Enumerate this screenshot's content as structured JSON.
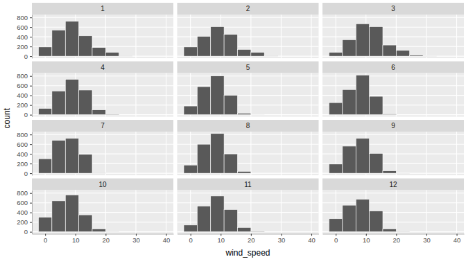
{
  "chart_data": {
    "type": "histogram",
    "x_label": "wind_speed",
    "y_label": "count",
    "color": "#595959",
    "grid": true,
    "bins": [
      -2.22,
      2.22,
      6.67,
      11.11,
      15.56,
      20.0,
      24.44,
      28.89,
      33.33,
      37.78,
      42.22
    ],
    "xlim": [
      -4.4,
      42.4
    ],
    "xticks": [
      0,
      10,
      20,
      30,
      40
    ],
    "ylim": [
      -41,
      860
    ],
    "yticks": [
      0,
      200,
      400,
      600,
      800
    ],
    "panels": [
      {
        "title": "1",
        "values": [
          190,
          540,
          720,
          420,
          180,
          80,
          5,
          0,
          0,
          0
        ]
      },
      {
        "title": "2",
        "values": [
          190,
          410,
          610,
          450,
          140,
          80,
          10,
          0,
          0,
          0
        ]
      },
      {
        "title": "3",
        "values": [
          80,
          340,
          670,
          610,
          230,
          120,
          20,
          3,
          0,
          0
        ]
      },
      {
        "title": "4",
        "values": [
          130,
          490,
          730,
          510,
          100,
          10,
          0,
          0,
          0,
          0
        ]
      },
      {
        "title": "5",
        "values": [
          180,
          580,
          800,
          400,
          30,
          2,
          0,
          0,
          0,
          0
        ]
      },
      {
        "title": "6",
        "values": [
          250,
          520,
          820,
          380,
          15,
          0,
          0,
          0,
          0,
          0
        ]
      },
      {
        "title": "7",
        "values": [
          300,
          680,
          720,
          390,
          5,
          0,
          0,
          0,
          0,
          0
        ]
      },
      {
        "title": "8",
        "values": [
          170,
          600,
          820,
          400,
          40,
          0,
          0,
          0,
          0,
          0
        ]
      },
      {
        "title": "9",
        "values": [
          190,
          560,
          720,
          410,
          50,
          2,
          0,
          0,
          0,
          0
        ]
      },
      {
        "title": "10",
        "values": [
          300,
          640,
          760,
          350,
          60,
          3,
          0,
          0,
          0,
          0
        ]
      },
      {
        "title": "11",
        "values": [
          140,
          530,
          740,
          460,
          90,
          10,
          0,
          0,
          0,
          0
        ]
      },
      {
        "title": "12",
        "values": [
          270,
          550,
          670,
          430,
          60,
          5,
          0,
          0,
          0,
          0
        ]
      }
    ]
  }
}
